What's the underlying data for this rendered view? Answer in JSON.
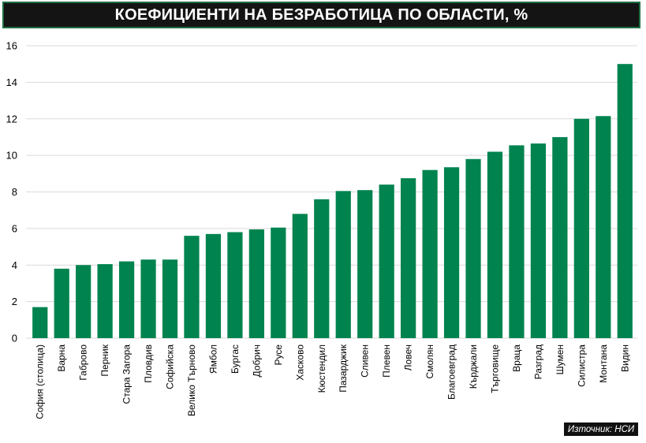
{
  "source": "Източник: НСИ",
  "colors": {
    "bar": "#00834f",
    "title_bg": "#141414",
    "title_border": "#1f6e45",
    "grid": "#d9d9d9",
    "axis_text": "#000000"
  },
  "chart_data": {
    "type": "bar",
    "title": "КОЕФИЦИЕНТИ НА БЕЗРАБОТИЦА ПО ОБЛАСТИ, %",
    "xlabel": "",
    "ylabel": "",
    "categories": [
      "София (столица)",
      "Варна",
      "Габрово",
      "Перник",
      "Стара Загора",
      "Пловдив",
      "Софийска",
      "Велико Търново",
      "Ямбол",
      "Бургас",
      "Добрич",
      "Русе",
      "Хасково",
      "Кюстендил",
      "Пазарджик",
      "Сливен",
      "Плевен",
      "Ловеч",
      "Смолян",
      "Благоевград",
      "Кърджали",
      "Търговище",
      "Враца",
      "Разград",
      "Шумен",
      "Силистра",
      "Монтана",
      "Видин"
    ],
    "values": [
      1.7,
      3.8,
      4.0,
      4.05,
      4.2,
      4.3,
      4.3,
      5.6,
      5.7,
      5.8,
      5.95,
      6.05,
      6.8,
      7.6,
      8.05,
      8.1,
      8.4,
      8.75,
      9.2,
      9.35,
      9.8,
      10.2,
      10.55,
      10.65,
      11.0,
      12.0,
      12.15,
      15.0
    ],
    "ylim": [
      0,
      16
    ],
    "yticks": [
      0,
      2,
      4,
      6,
      8,
      10,
      12,
      14,
      16
    ],
    "grid": true,
    "legend": "none"
  }
}
